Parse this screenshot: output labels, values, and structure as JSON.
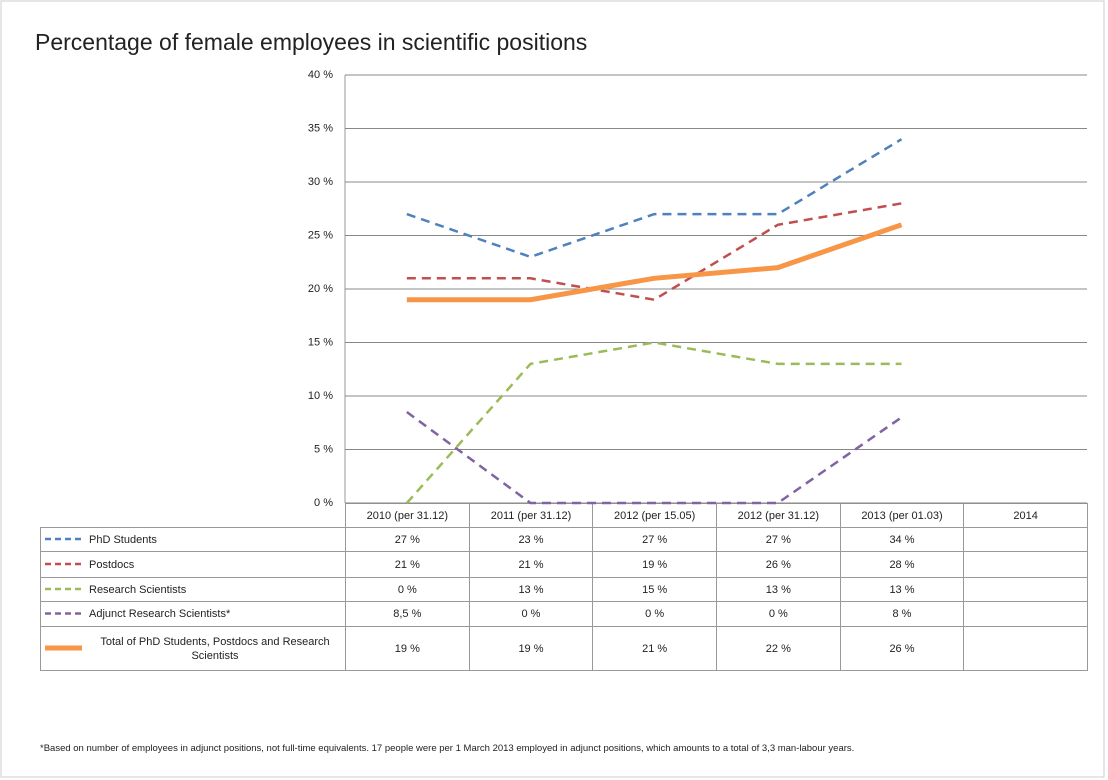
{
  "chart_data": {
    "type": "line",
    "title": "Percentage of female employees in scientific positions",
    "categories": [
      "2010 (per 31.12)",
      "2011 (per 31.12)",
      "2012 (per 15.05)",
      "2012 (per 31.12)",
      "2013 (per 01.03)",
      "2014"
    ],
    "series": [
      {
        "name": "PhD Students",
        "color": "#4f81bd",
        "dashed": true,
        "values": [
          27,
          23,
          27,
          27,
          34,
          null
        ],
        "value_labels": [
          "27 %",
          "23 %",
          "27 %",
          "27 %",
          "34 %",
          null
        ]
      },
      {
        "name": "Postdocs",
        "color": "#c0504d",
        "dashed": true,
        "values": [
          21,
          21,
          19,
          26,
          28,
          null
        ],
        "value_labels": [
          "21 %",
          "21 %",
          "19 %",
          "26 %",
          "28 %",
          null
        ]
      },
      {
        "name": "Research Scientists",
        "color": "#9bbb59",
        "dashed": true,
        "values": [
          0,
          13,
          15,
          13,
          13,
          null
        ],
        "value_labels": [
          "0 %",
          "13 %",
          "15 %",
          "13 %",
          "13 %",
          null
        ]
      },
      {
        "name": "Adjunct Research Scientists*",
        "color": "#8064a2",
        "dashed": true,
        "values": [
          8.5,
          0,
          0,
          0,
          8,
          null
        ],
        "value_labels": [
          "8,5 %",
          "0 %",
          "0 %",
          "0 %",
          "8 %",
          null
        ]
      },
      {
        "name": "Total of PhD Students, Postdocs and Research Scientists",
        "color": "#f79646",
        "dashed": false,
        "values": [
          19,
          19,
          21,
          22,
          26,
          null
        ],
        "value_labels": [
          "19 %",
          "19 %",
          "21 %",
          "22 %",
          "26 %",
          null
        ]
      }
    ],
    "ylim": [
      0,
      40
    ],
    "yticks": [
      {
        "value": 0,
        "label": "0 %"
      },
      {
        "value": 5,
        "label": "5 %"
      },
      {
        "value": 10,
        "label": "10 %"
      },
      {
        "value": 15,
        "label": "15 %"
      },
      {
        "value": 20,
        "label": "20 %"
      },
      {
        "value": 25,
        "label": "25 %"
      },
      {
        "value": 30,
        "label": "30 %"
      },
      {
        "value": 35,
        "label": "35 %"
      },
      {
        "value": 40,
        "label": "40 %"
      }
    ],
    "grid": true,
    "footnote": "*Based on number of employees in adjunct positions, not full-time equivalents. 17 people were per 1 March 2013 employed in adjunct positions, which amounts to a total of 3,3 man-labour years."
  }
}
